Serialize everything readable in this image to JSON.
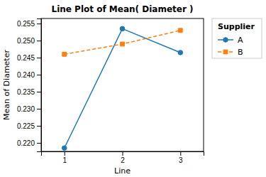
{
  "chart_data": {
    "type": "line",
    "title": "Line Plot of Mean( Diameter )",
    "x_label": "Line",
    "y_label": "Mean of Diameter",
    "legend_title": "Supplier",
    "x": [
      1,
      2,
      3
    ],
    "series": [
      {
        "name": "A",
        "values": [
          0.2185,
          0.2535,
          0.2465
        ],
        "marker": "circle",
        "line_style": "solid"
      },
      {
        "name": "B",
        "values": [
          0.246,
          0.249,
          0.253
        ],
        "marker": "square",
        "line_style": "dashed"
      }
    ],
    "xlim": [
      0.6,
      3.4
    ],
    "xticks": [
      1,
      2,
      3
    ],
    "ylim": [
      0.2175,
      0.2565
    ],
    "yticks": [
      {
        "value": 0.22,
        "label": "0.220"
      },
      0.225,
      {
        "value": 0.23,
        "label": "0.230"
      },
      0.235,
      {
        "value": 0.24,
        "label": "0.240"
      },
      0.245,
      {
        "value": 0.25,
        "label": "0.250"
      },
      0.255
    ],
    "grid": false
  }
}
